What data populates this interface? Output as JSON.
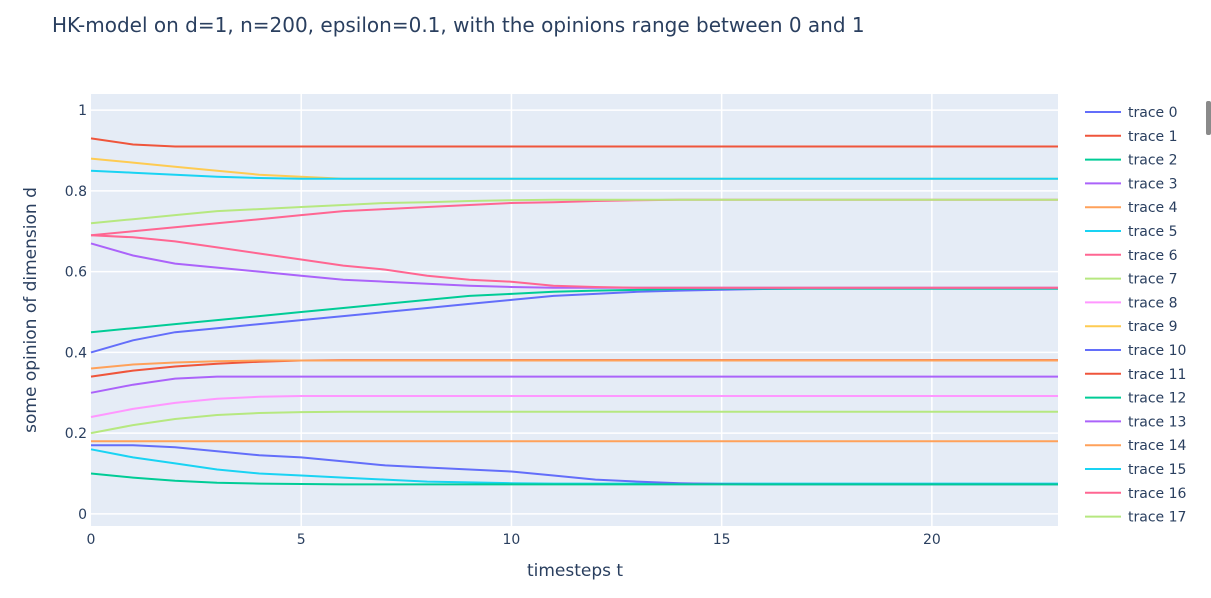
{
  "chart_data": {
    "type": "line",
    "title": "HK-model on d=1, n=200, epsilon=0.1, with the opinions range between 0 and 1",
    "xlabel": "timesteps t",
    "ylabel": "some opinion of dimension d",
    "xlim": [
      0,
      23
    ],
    "ylim": [
      -0.03,
      1.04
    ],
    "xticks": [
      0,
      5,
      10,
      15,
      20
    ],
    "xtick_labels": [
      "0",
      "5",
      "10",
      "15",
      "20"
    ],
    "yticks": [
      0,
      0.2,
      0.4,
      0.6,
      0.8,
      1
    ],
    "ytick_labels": [
      "0",
      "0.2",
      "0.4",
      "0.6",
      "0.8",
      "1"
    ],
    "grid": true,
    "legend_position": "right",
    "x": [
      0,
      1,
      2,
      3,
      4,
      5,
      6,
      7,
      8,
      9,
      10,
      11,
      12,
      13,
      14,
      15,
      16,
      17,
      18,
      19,
      20,
      21,
      22,
      23
    ],
    "series": [
      {
        "name": "trace 0",
        "color": "#636efa",
        "values": [
          0.4,
          0.43,
          0.45,
          0.46,
          0.47,
          0.48,
          0.49,
          0.5,
          0.51,
          0.52,
          0.53,
          0.54,
          0.545,
          0.55,
          0.553,
          0.555,
          0.557,
          0.558,
          0.558,
          0.558,
          0.558,
          0.558,
          0.558,
          0.558
        ]
      },
      {
        "name": "trace 1",
        "color": "#EF553B",
        "values": [
          0.93,
          0.915,
          0.91,
          0.91,
          0.91,
          0.91,
          0.91,
          0.91,
          0.91,
          0.91,
          0.91,
          0.91,
          0.91,
          0.91,
          0.91,
          0.91,
          0.91,
          0.91,
          0.91,
          0.91,
          0.91,
          0.91,
          0.91,
          0.91
        ]
      },
      {
        "name": "trace 2",
        "color": "#00cc96",
        "values": [
          0.45,
          0.46,
          0.47,
          0.48,
          0.49,
          0.5,
          0.51,
          0.52,
          0.53,
          0.54,
          0.545,
          0.55,
          0.553,
          0.555,
          0.557,
          0.558,
          0.558,
          0.558,
          0.558,
          0.558,
          0.558,
          0.558,
          0.558,
          0.558
        ]
      },
      {
        "name": "trace 3",
        "color": "#ab63fa",
        "values": [
          0.67,
          0.64,
          0.62,
          0.61,
          0.6,
          0.59,
          0.58,
          0.575,
          0.57,
          0.565,
          0.562,
          0.56,
          0.56,
          0.56,
          0.56,
          0.56,
          0.56,
          0.56,
          0.56,
          0.56,
          0.56,
          0.56,
          0.56,
          0.56
        ]
      },
      {
        "name": "trace 4",
        "color": "#FFA15A",
        "values": [
          0.18,
          0.18,
          0.18,
          0.18,
          0.18,
          0.18,
          0.18,
          0.18,
          0.18,
          0.18,
          0.18,
          0.18,
          0.18,
          0.18,
          0.18,
          0.18,
          0.18,
          0.18,
          0.18,
          0.18,
          0.18,
          0.18,
          0.18,
          0.18
        ]
      },
      {
        "name": "trace 5",
        "color": "#19d3f3",
        "values": [
          0.16,
          0.14,
          0.125,
          0.11,
          0.1,
          0.095,
          0.09,
          0.085,
          0.08,
          0.078,
          0.076,
          0.075,
          0.075,
          0.075,
          0.075,
          0.075,
          0.075,
          0.075,
          0.075,
          0.075,
          0.075,
          0.075,
          0.075,
          0.075
        ]
      },
      {
        "name": "trace 6",
        "color": "#FF6692",
        "values": [
          0.69,
          0.685,
          0.675,
          0.66,
          0.645,
          0.63,
          0.615,
          0.605,
          0.59,
          0.58,
          0.575,
          0.565,
          0.562,
          0.56,
          0.56,
          0.56,
          0.56,
          0.56,
          0.56,
          0.56,
          0.56,
          0.56,
          0.56,
          0.56
        ]
      },
      {
        "name": "trace 7",
        "color": "#B6E880",
        "values": [
          0.2,
          0.22,
          0.235,
          0.245,
          0.25,
          0.252,
          0.253,
          0.253,
          0.253,
          0.253,
          0.253,
          0.253,
          0.253,
          0.253,
          0.253,
          0.253,
          0.253,
          0.253,
          0.253,
          0.253,
          0.253,
          0.253,
          0.253,
          0.253
        ]
      },
      {
        "name": "trace 8",
        "color": "#FF97FF",
        "values": [
          0.24,
          0.26,
          0.275,
          0.285,
          0.29,
          0.292,
          0.292,
          0.292,
          0.292,
          0.292,
          0.292,
          0.292,
          0.292,
          0.292,
          0.292,
          0.292,
          0.292,
          0.292,
          0.292,
          0.292,
          0.292,
          0.292,
          0.292,
          0.292
        ]
      },
      {
        "name": "trace 9",
        "color": "#FECB52",
        "values": [
          0.88,
          0.87,
          0.86,
          0.85,
          0.84,
          0.835,
          0.83,
          0.83,
          0.83,
          0.83,
          0.83,
          0.83,
          0.83,
          0.83,
          0.83,
          0.83,
          0.83,
          0.83,
          0.83,
          0.83,
          0.83,
          0.83,
          0.83,
          0.83
        ]
      },
      {
        "name": "trace 10",
        "color": "#636efa",
        "values": [
          0.17,
          0.17,
          0.165,
          0.155,
          0.145,
          0.14,
          0.13,
          0.12,
          0.115,
          0.11,
          0.105,
          0.095,
          0.085,
          0.08,
          0.076,
          0.074,
          0.073,
          0.073,
          0.073,
          0.073,
          0.073,
          0.073,
          0.073,
          0.073
        ]
      },
      {
        "name": "trace 11",
        "color": "#EF553B",
        "values": [
          0.34,
          0.355,
          0.365,
          0.372,
          0.377,
          0.38,
          0.381,
          0.381,
          0.381,
          0.381,
          0.381,
          0.381,
          0.381,
          0.381,
          0.381,
          0.381,
          0.381,
          0.381,
          0.381,
          0.381,
          0.381,
          0.381,
          0.381,
          0.381
        ]
      },
      {
        "name": "trace 12",
        "color": "#00cc96",
        "values": [
          0.1,
          0.09,
          0.082,
          0.077,
          0.075,
          0.074,
          0.073,
          0.073,
          0.073,
          0.073,
          0.073,
          0.073,
          0.073,
          0.073,
          0.073,
          0.073,
          0.073,
          0.073,
          0.073,
          0.073,
          0.073,
          0.073,
          0.073,
          0.073
        ]
      },
      {
        "name": "trace 13",
        "color": "#ab63fa",
        "values": [
          0.3,
          0.32,
          0.335,
          0.34,
          0.34,
          0.34,
          0.34,
          0.34,
          0.34,
          0.34,
          0.34,
          0.34,
          0.34,
          0.34,
          0.34,
          0.34,
          0.34,
          0.34,
          0.34,
          0.34,
          0.34,
          0.34,
          0.34,
          0.34
        ]
      },
      {
        "name": "trace 14",
        "color": "#FFA15A",
        "values": [
          0.36,
          0.37,
          0.375,
          0.378,
          0.38,
          0.38,
          0.38,
          0.38,
          0.38,
          0.38,
          0.38,
          0.38,
          0.38,
          0.38,
          0.38,
          0.38,
          0.38,
          0.38,
          0.38,
          0.38,
          0.38,
          0.38,
          0.38,
          0.38
        ]
      },
      {
        "name": "trace 15",
        "color": "#19d3f3",
        "values": [
          0.85,
          0.845,
          0.84,
          0.835,
          0.832,
          0.83,
          0.83,
          0.83,
          0.83,
          0.83,
          0.83,
          0.83,
          0.83,
          0.83,
          0.83,
          0.83,
          0.83,
          0.83,
          0.83,
          0.83,
          0.83,
          0.83,
          0.83,
          0.83
        ]
      },
      {
        "name": "trace 16",
        "color": "#FF6692",
        "values": [
          0.69,
          0.7,
          0.71,
          0.72,
          0.73,
          0.74,
          0.75,
          0.755,
          0.76,
          0.765,
          0.77,
          0.772,
          0.775,
          0.777,
          0.778,
          0.778,
          0.778,
          0.778,
          0.778,
          0.778,
          0.778,
          0.778,
          0.778,
          0.778
        ]
      },
      {
        "name": "trace 17",
        "color": "#B6E880",
        "values": [
          0.72,
          0.73,
          0.74,
          0.75,
          0.755,
          0.76,
          0.765,
          0.77,
          0.772,
          0.775,
          0.777,
          0.778,
          0.778,
          0.778,
          0.778,
          0.778,
          0.778,
          0.778,
          0.778,
          0.778,
          0.778,
          0.778,
          0.778,
          0.778
        ]
      }
    ]
  }
}
